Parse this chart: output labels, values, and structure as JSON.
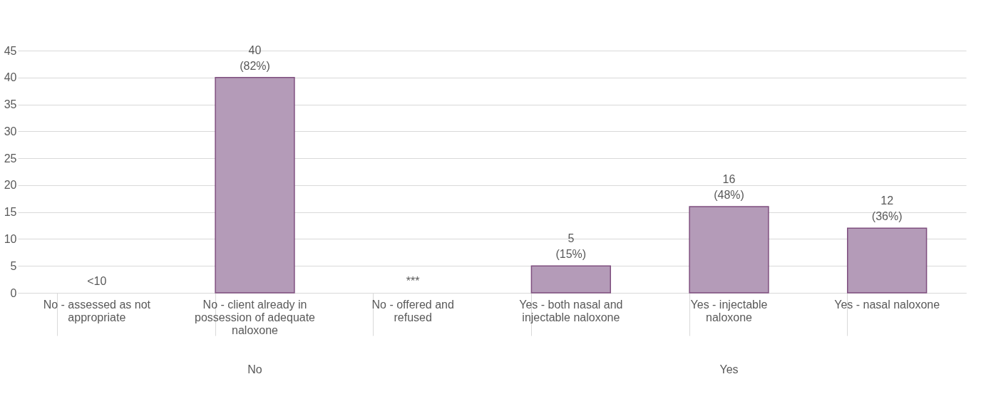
{
  "chart_data": {
    "type": "bar",
    "categories": [
      "No - assessed as not appropriate",
      "No - client already in possession of adequate naloxone",
      "No - offered and refused",
      "Yes - both nasal and injectable naloxone",
      "Yes - injectable naloxone",
      "Yes - nasal naloxone"
    ],
    "values": [
      null,
      40,
      null,
      5,
      16,
      12
    ],
    "value_labels": [
      "<10",
      "40\n(82%)",
      "***",
      "5\n(15%)",
      "16\n(48%)",
      "12\n(36%)"
    ],
    "color": "#b49bb8",
    "ylim": [
      0,
      45
    ],
    "yticks": [
      0,
      5,
      10,
      15,
      20,
      25,
      30,
      35,
      40,
      45
    ],
    "grid": "y",
    "annotations": [
      "No",
      "Yes"
    ]
  }
}
